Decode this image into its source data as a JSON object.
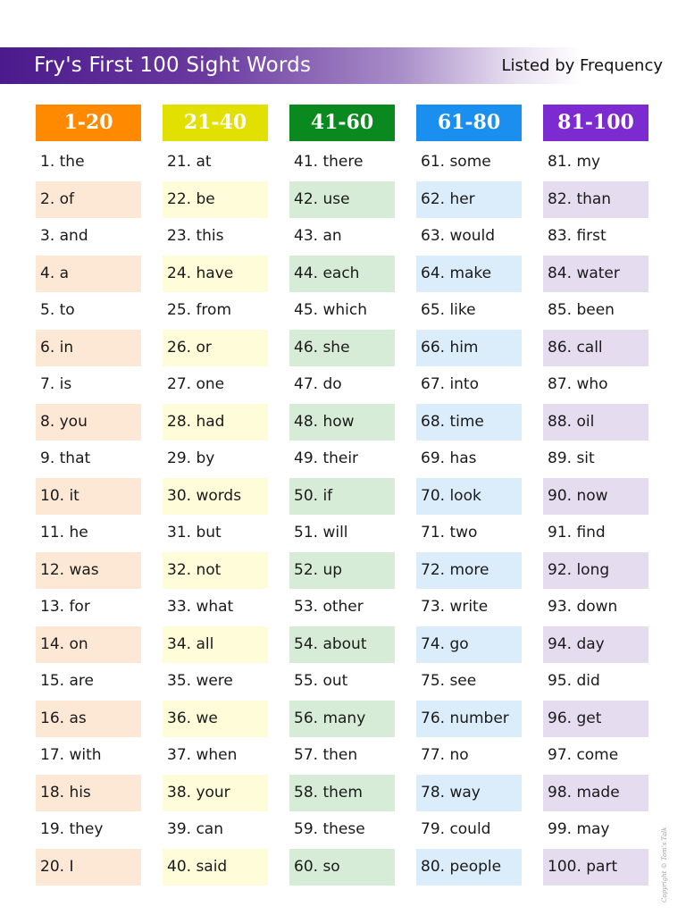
{
  "header": {
    "title": "Fry's First 100 Sight Words",
    "subtitle": "Listed by Frequency"
  },
  "columns": [
    {
      "label": "1-20",
      "color": "#ff8a00",
      "shade": "#fde8d6",
      "words": [
        "1. the",
        "2. of",
        "3. and",
        "4. a",
        "5. to",
        "6. in",
        "7. is",
        "8. you",
        "9. that",
        "10. it",
        "11. he",
        "12. was",
        "13. for",
        "14. on",
        "15. are",
        "16. as",
        "17. with",
        "18. his",
        "19. they",
        "20. I"
      ]
    },
    {
      "label": "21-40",
      "color": "#e2e000",
      "shade": "#fefcd9",
      "words": [
        "21. at",
        "22. be",
        "23. this",
        "24. have",
        "25. from",
        "26. or",
        "27. one",
        "28. had",
        "29. by",
        "30. words",
        "31. but",
        "32. not",
        "33. what",
        "34. all",
        "35. were",
        "36. we",
        "37. when",
        "38. your",
        "39. can",
        "40. said"
      ]
    },
    {
      "label": "41-60",
      "color": "#0a8a1e",
      "shade": "#d7ecd6",
      "words": [
        "41. there",
        "42. use",
        "43. an",
        "44. each",
        "45. which",
        "46. she",
        "47. do",
        "48. how",
        "49. their",
        "50. if",
        "51. will",
        "52. up",
        "53. other",
        "54. about",
        "55. out",
        "56. many",
        "57. then",
        "58. them",
        "59. these",
        "60. so"
      ]
    },
    {
      "label": "61-80",
      "color": "#1a8ff0",
      "shade": "#dbecfb",
      "words": [
        "61. some",
        "62. her",
        "63. would",
        "64. make",
        "65. like",
        "66. him",
        "67. into",
        "68. time",
        "69. has",
        "70. look",
        "71. two",
        "72. more",
        "73. write",
        "74. go",
        "75. see",
        "76. number",
        "77. no",
        "78. way",
        "79. could",
        "80. people"
      ]
    },
    {
      "label": "81-100",
      "color": "#7b2bd0",
      "shade": "#e5dcef",
      "words": [
        "81. my",
        "82. than",
        "83. first",
        "84. water",
        "85. been",
        "86. call",
        "87. who",
        "88. oil",
        "89. sit",
        "90. now",
        "91. find",
        "92. long",
        "93. down",
        "94. day",
        "95. did",
        "96. get",
        "97. come",
        "98. made",
        "99. may",
        "100. part"
      ]
    }
  ],
  "footer": {
    "copyright": "Copyright © Tom's Talk"
  }
}
